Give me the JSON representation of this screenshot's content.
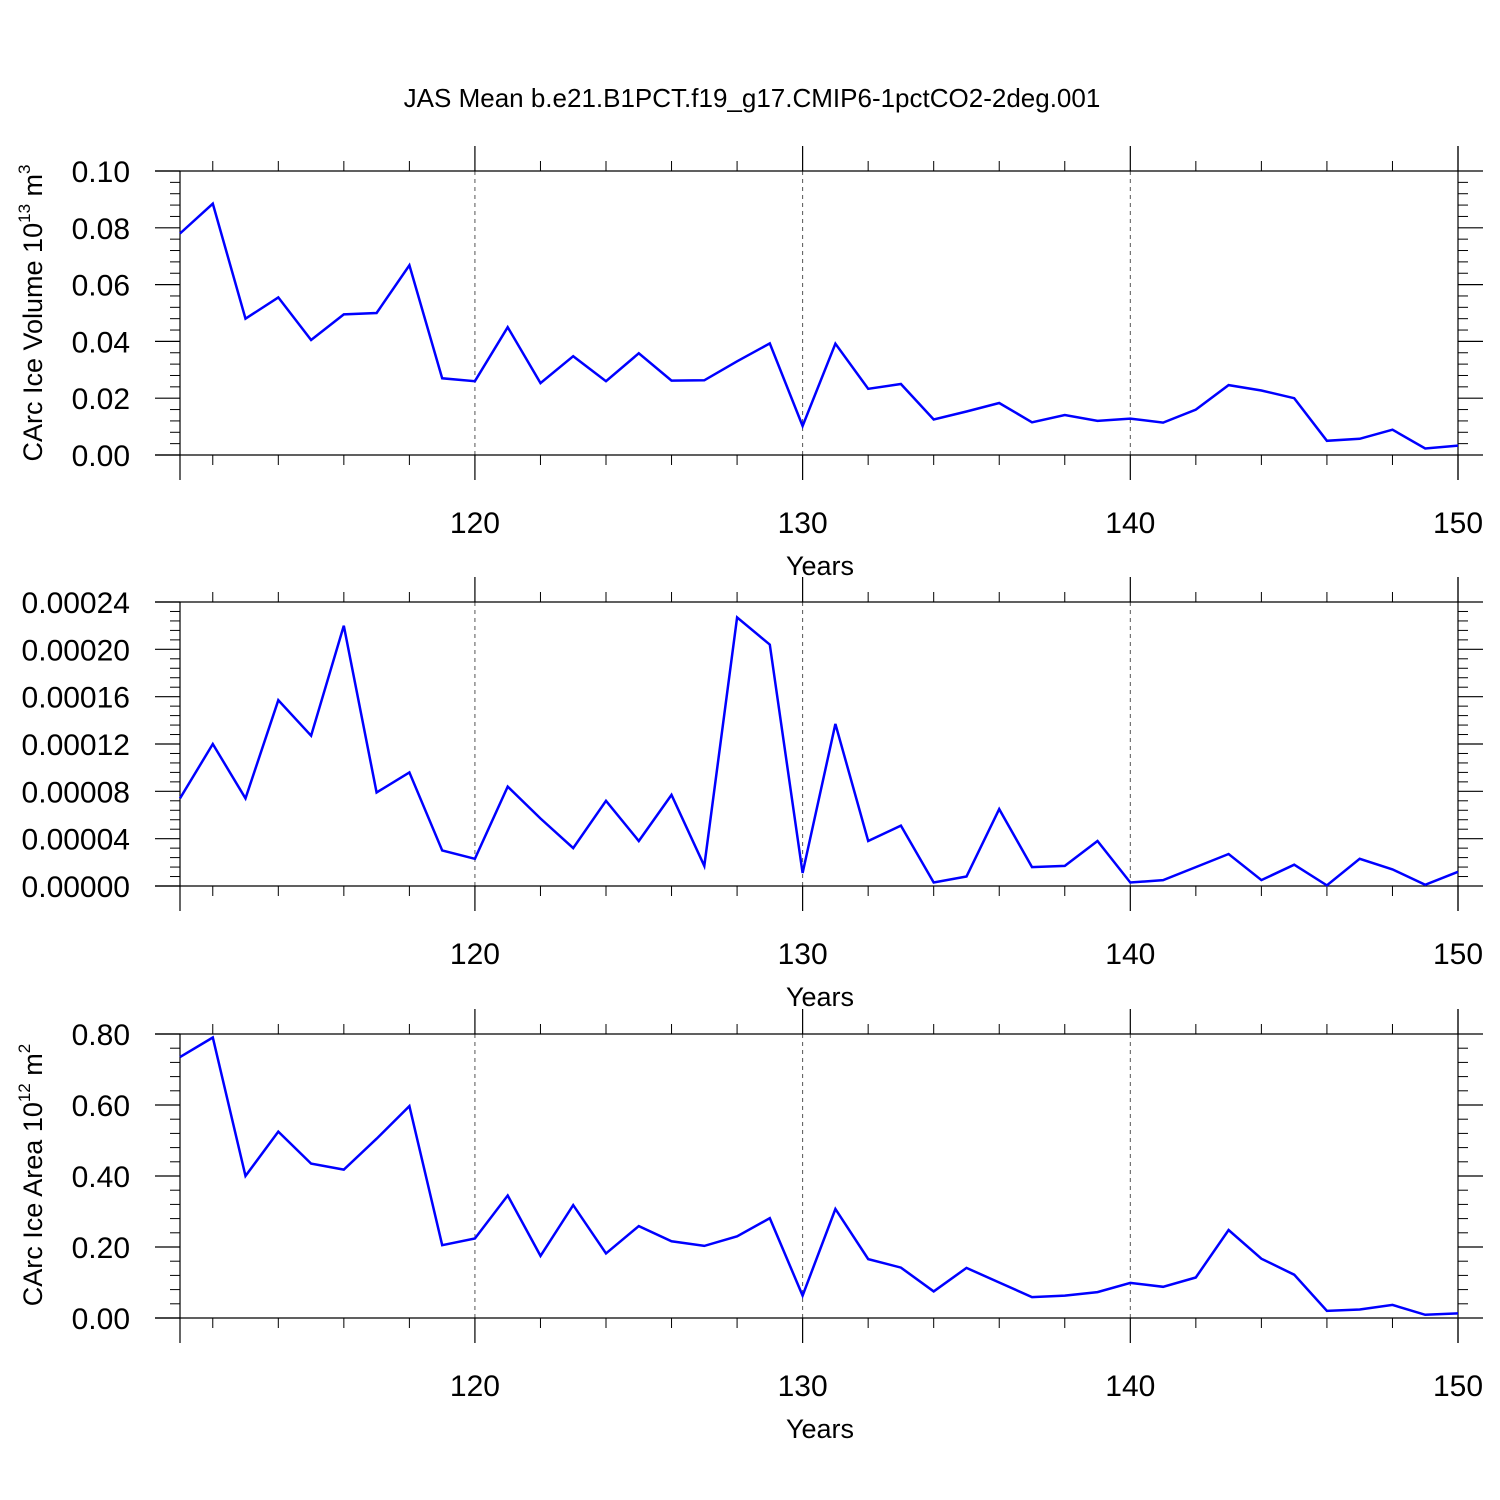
{
  "title": "JAS Mean b.e21.B1PCT.f19_g17.CMIP6-1pctCO2-2deg.001",
  "chart_data": [
    {
      "type": "line",
      "xlabel": "Years",
      "ylabel_main": "CArc Ice Volume 10",
      "ylabel_exp": "13",
      "ylabel_unit": "m",
      "ylabel_unit_exp": "3",
      "xlim": [
        111,
        150
      ],
      "ylim": [
        0,
        0.1
      ],
      "xticks": [
        120,
        130,
        140,
        150
      ],
      "xtick_labels": [
        "120",
        "130",
        "140",
        "150"
      ],
      "yticks": [
        0,
        0.02,
        0.04,
        0.06,
        0.08,
        0.1
      ],
      "ytick_labels": [
        "0.00",
        "0.02",
        "0.04",
        "0.06",
        "0.08",
        "0.10"
      ],
      "grid": "dashed vertical at major x ticks",
      "color": "#0000ff",
      "x": [
        111,
        112,
        113,
        114,
        115,
        116,
        117,
        118,
        119,
        120,
        121,
        122,
        123,
        124,
        125,
        126,
        127,
        128,
        129,
        130,
        131,
        132,
        133,
        134,
        135,
        136,
        137,
        138,
        139,
        140,
        141,
        142,
        143,
        144,
        145,
        146,
        147,
        148,
        149,
        150
      ],
      "values": [
        0.078,
        0.0885,
        0.048,
        0.0555,
        0.0405,
        0.0495,
        0.05,
        0.0668,
        0.027,
        0.026,
        0.045,
        0.0253,
        0.0348,
        0.026,
        0.0358,
        0.0262,
        0.0263,
        0.033,
        0.0393,
        0.0102,
        0.0392,
        0.0233,
        0.025,
        0.0125,
        0.0153,
        0.0183,
        0.0115,
        0.0141,
        0.012,
        0.0128,
        0.0114,
        0.016,
        0.0246,
        0.0227,
        0.02,
        0.005,
        0.0057,
        0.0089,
        0.0023,
        0.0033
      ]
    },
    {
      "type": "line",
      "xlabel": "Years",
      "xlim": [
        111,
        150
      ],
      "ylim": [
        0,
        0.00024
      ],
      "xticks": [
        120,
        130,
        140,
        150
      ],
      "xtick_labels": [
        "120",
        "130",
        "140",
        "150"
      ],
      "yticks": [
        0,
        4e-05,
        8e-05,
        0.00012,
        0.00016,
        0.0002,
        0.00024
      ],
      "ytick_labels": [
        "0.00000",
        "0.00004",
        "0.00008",
        "0.00012",
        "0.00016",
        "0.00020",
        "0.00024"
      ],
      "grid": "dashed vertical at major x ticks",
      "color": "#0000ff",
      "x": [
        111,
        112,
        113,
        114,
        115,
        116,
        117,
        118,
        119,
        120,
        121,
        122,
        123,
        124,
        125,
        126,
        127,
        128,
        129,
        130,
        131,
        132,
        133,
        134,
        135,
        136,
        137,
        138,
        139,
        140,
        141,
        142,
        143,
        144,
        145,
        146,
        147,
        148,
        149,
        150
      ],
      "values": [
        7.4e-05,
        0.00012,
        7.4e-05,
        0.000157,
        0.000127,
        0.00022,
        7.9e-05,
        9.6e-05,
        3e-05,
        2.3e-05,
        8.4e-05,
        5.7e-05,
        3.2e-05,
        7.2e-05,
        3.8e-05,
        7.7e-05,
        1.7e-05,
        0.000227,
        0.000204,
        1.1e-05,
        0.000137,
        3.8e-05,
        5.1e-05,
        3e-06,
        8e-06,
        6.5e-05,
        1.6e-05,
        1.7e-05,
        3.8e-05,
        3e-06,
        5e-06,
        1.6e-05,
        2.7e-05,
        5e-06,
        1.8e-05,
        5e-07,
        2.3e-05,
        1.4e-05,
        1e-06,
        1.2e-05
      ]
    },
    {
      "type": "line",
      "xlabel": "Years",
      "ylabel_main": "CArc Ice Area 10",
      "ylabel_exp": "12",
      "ylabel_unit": "m",
      "ylabel_unit_exp": "2",
      "xlim": [
        111,
        150
      ],
      "ylim": [
        0,
        0.8
      ],
      "xticks": [
        120,
        130,
        140,
        150
      ],
      "xtick_labels": [
        "120",
        "130",
        "140",
        "150"
      ],
      "yticks": [
        0,
        0.2,
        0.4,
        0.6,
        0.8
      ],
      "ytick_labels": [
        "0.00",
        "0.20",
        "0.40",
        "0.60",
        "0.80"
      ],
      "grid": "dashed vertical at major x ticks",
      "color": "#0000ff",
      "x": [
        111,
        112,
        113,
        114,
        115,
        116,
        117,
        118,
        119,
        120,
        121,
        122,
        123,
        124,
        125,
        126,
        127,
        128,
        129,
        130,
        131,
        132,
        133,
        134,
        135,
        136,
        137,
        138,
        139,
        140,
        141,
        142,
        143,
        144,
        145,
        146,
        147,
        148,
        149,
        150
      ],
      "values": [
        0.735,
        0.79,
        0.4,
        0.525,
        0.435,
        0.418,
        0.505,
        0.597,
        0.205,
        0.224,
        0.345,
        0.175,
        0.318,
        0.182,
        0.259,
        0.216,
        0.203,
        0.23,
        0.281,
        0.063,
        0.307,
        0.166,
        0.142,
        0.075,
        0.141,
        0.1,
        0.059,
        0.063,
        0.073,
        0.099,
        0.088,
        0.114,
        0.248,
        0.167,
        0.122,
        0.02,
        0.024,
        0.037,
        0.009,
        0.013
      ]
    }
  ]
}
